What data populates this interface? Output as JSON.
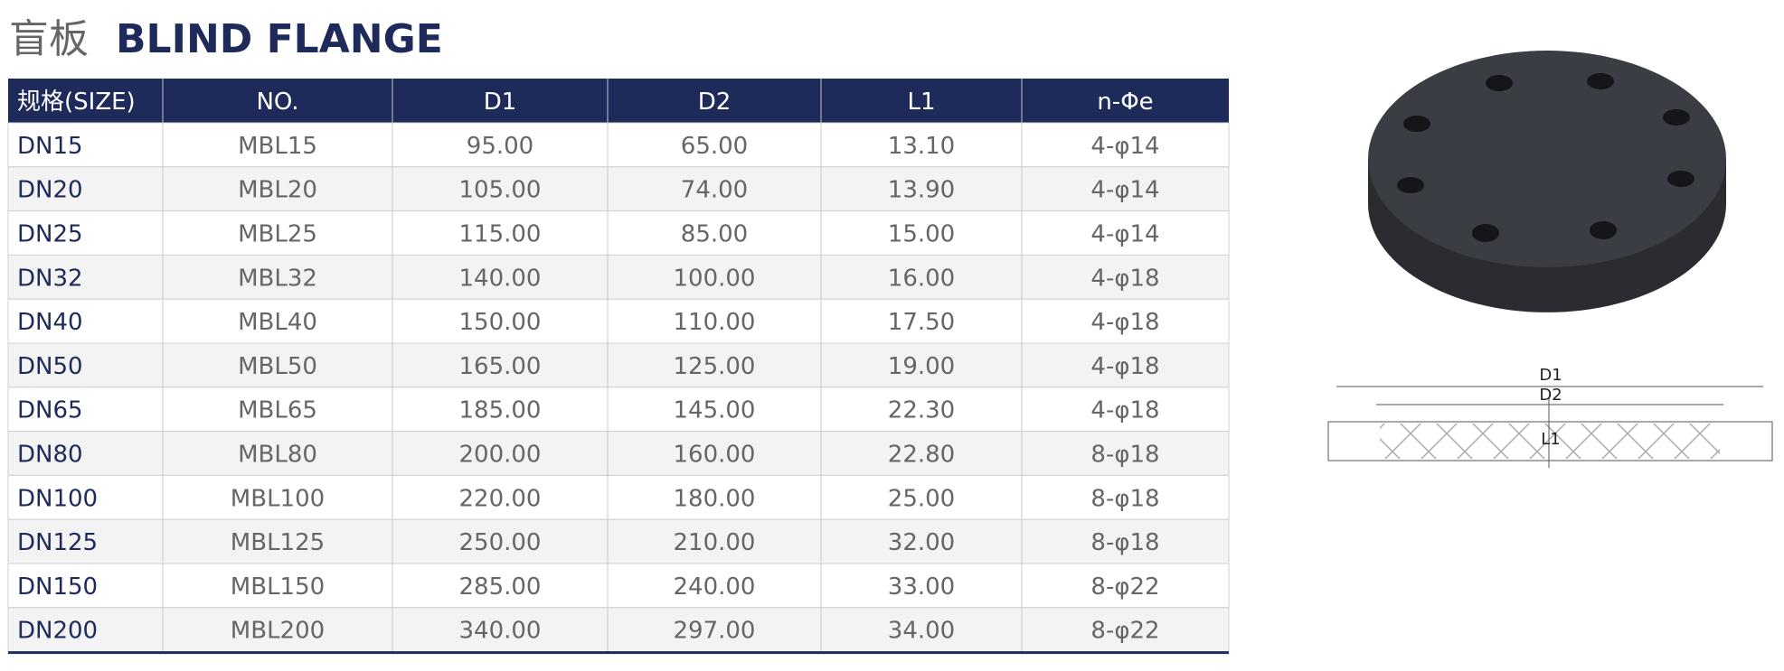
{
  "header": {
    "title_cn": "盲板",
    "title_en": "BLIND FLANGE"
  },
  "table": {
    "columns": [
      "规格(SIZE)",
      "NO.",
      "D1",
      "D2",
      "L1",
      "n-Φe"
    ],
    "rows": [
      [
        "DN15",
        "MBL15",
        "95.00",
        "65.00",
        "13.10",
        "4-φ14"
      ],
      [
        "DN20",
        "MBL20",
        "105.00",
        "74.00",
        "13.90",
        "4-φ14"
      ],
      [
        "DN25",
        "MBL25",
        "115.00",
        "85.00",
        "15.00",
        "4-φ14"
      ],
      [
        "DN32",
        "MBL32",
        "140.00",
        "100.00",
        "16.00",
        "4-φ18"
      ],
      [
        "DN40",
        "MBL40",
        "150.00",
        "110.00",
        "17.50",
        "4-φ18"
      ],
      [
        "DN50",
        "MBL50",
        "165.00",
        "125.00",
        "19.00",
        "4-φ18"
      ],
      [
        "DN65",
        "MBL65",
        "185.00",
        "145.00",
        "22.30",
        "4-φ18"
      ],
      [
        "DN80",
        "MBL80",
        "200.00",
        "160.00",
        "22.80",
        "8-φ18"
      ],
      [
        "DN100",
        "MBL100",
        "220.00",
        "180.00",
        "25.00",
        "8-φ18"
      ],
      [
        "DN125",
        "MBL125",
        "250.00",
        "210.00",
        "32.00",
        "8-φ18"
      ],
      [
        "DN150",
        "MBL150",
        "285.00",
        "240.00",
        "33.00",
        "8-φ22"
      ],
      [
        "DN200",
        "MBL200",
        "340.00",
        "297.00",
        "34.00",
        "8-φ22"
      ]
    ]
  },
  "diagram": {
    "labels": [
      "D1",
      "D2",
      "L1"
    ]
  }
}
